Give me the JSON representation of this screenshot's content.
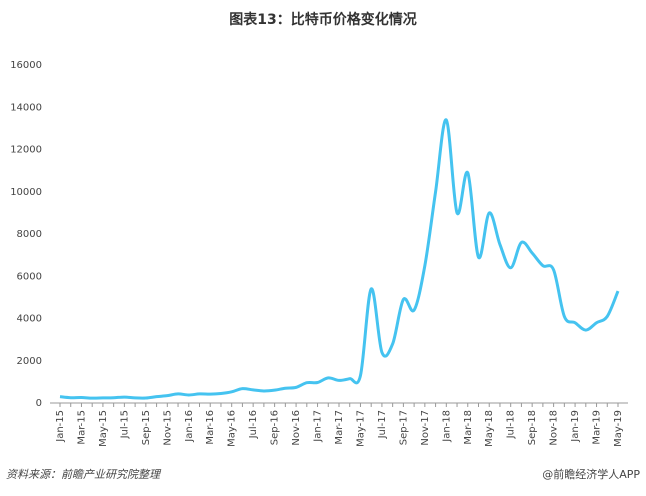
{
  "chart_data": {
    "type": "line",
    "title": "图表13：比特币价格变化情况",
    "source": "资料来源：前瞻产业研究院整理",
    "credit": "@前瞻经济学人APP",
    "categories": [
      "Jan-15",
      null,
      "Mar-15",
      null,
      "May-15",
      null,
      "Jul-15",
      null,
      "Sep-15",
      null,
      "Nov-15",
      null,
      "Jan-16",
      null,
      "Mar-16",
      null,
      "May-16",
      null,
      "Jul-16",
      null,
      "Sep-16",
      null,
      "Nov-16",
      null,
      "Jan-17",
      null,
      "Mar-17",
      null,
      "May-17",
      null,
      "Jul-17",
      null,
      "Sep-17",
      null,
      "Nov-17",
      null,
      "Jan-18",
      null,
      "Mar-18",
      null,
      "May-18",
      null,
      "Jul-18",
      null,
      "Sep-18",
      null,
      "Nov-18",
      null,
      "Jan-19",
      null,
      "Mar-19",
      null,
      "May-19"
    ],
    "values": [
      300,
      250,
      260,
      230,
      240,
      250,
      280,
      240,
      235,
      300,
      350,
      430,
      380,
      430,
      420,
      450,
      530,
      680,
      620,
      570,
      610,
      700,
      740,
      960,
      970,
      1190,
      1070,
      1150,
      1300,
      5400,
      2400,
      2800,
      4900,
      4400,
      6500,
      10000,
      13400,
      9000,
      10900,
      6900,
      9000,
      7500,
      6400,
      7600,
      7100,
      6500,
      6300,
      4100,
      3800,
      3450,
      3800,
      4100,
      5300
    ],
    "color": "#45c3f0",
    "ylim": [
      0,
      16000
    ],
    "yticks": [
      0,
      2000,
      4000,
      6000,
      8000,
      10000,
      12000,
      14000,
      16000
    ],
    "grid": false
  }
}
